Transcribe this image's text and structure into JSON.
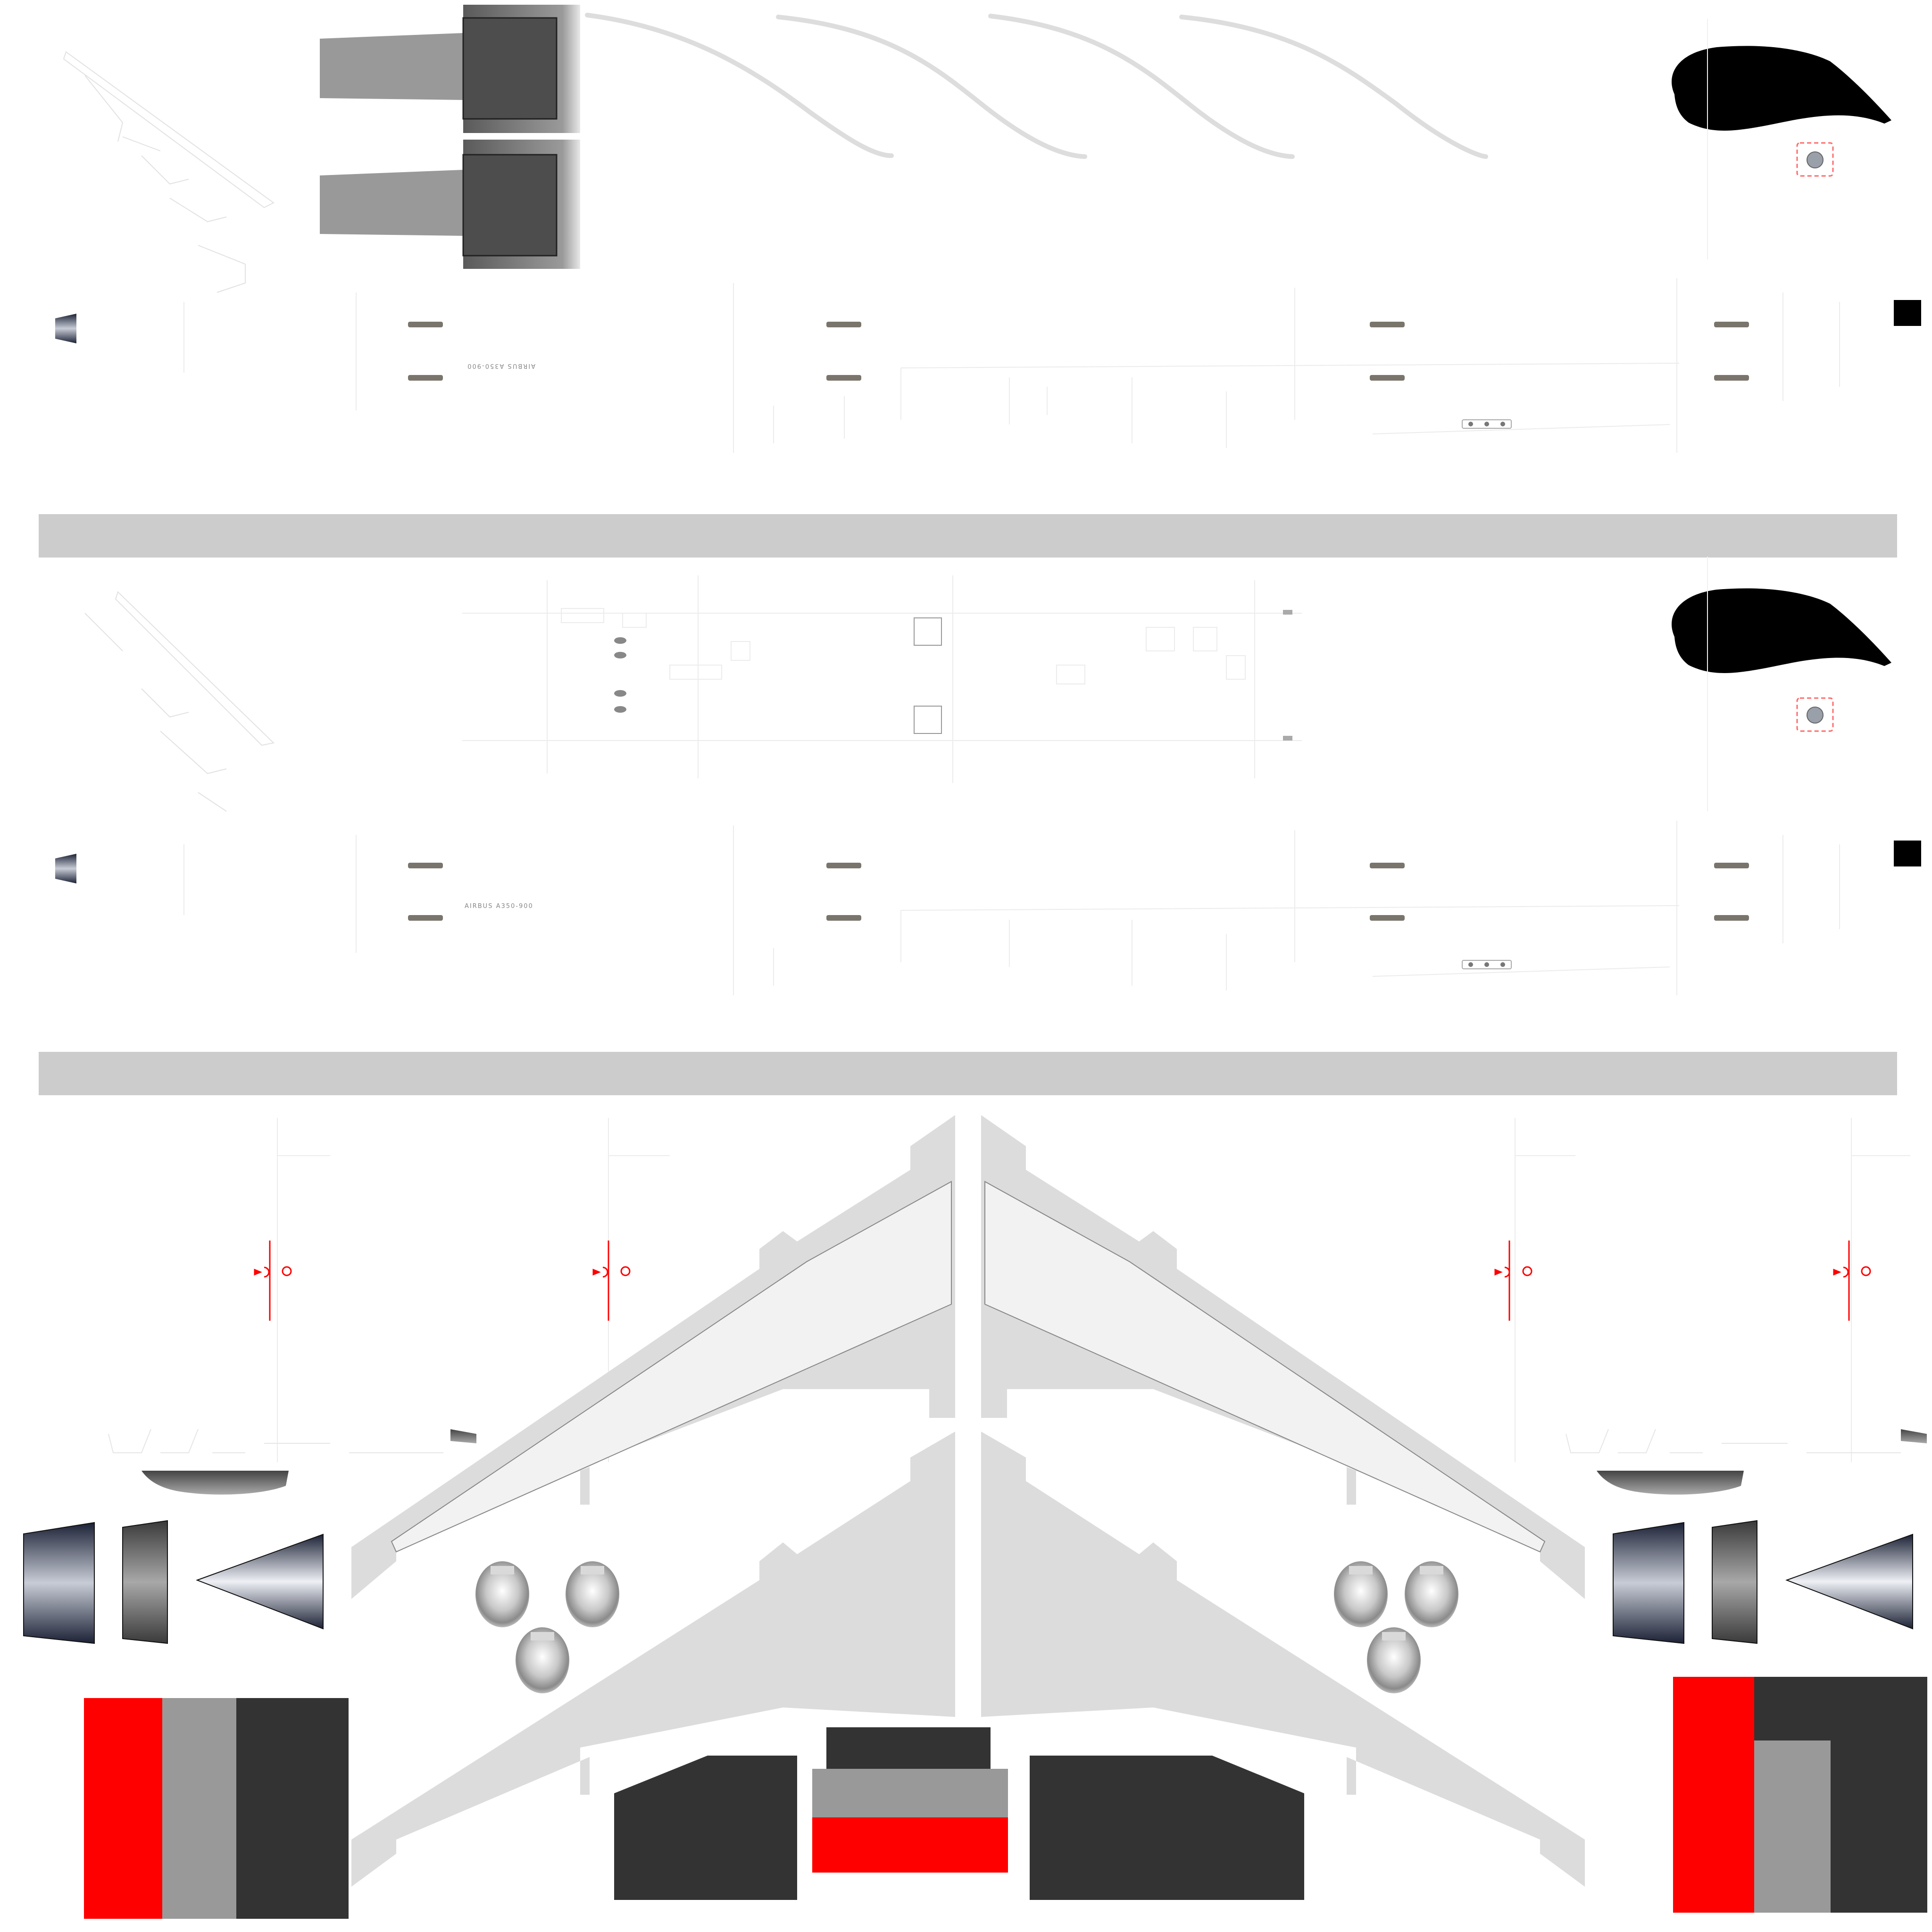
{
  "texture": {
    "registration_upper": "AIRBUS A350-900",
    "registration_lower": "AIRBUS A350-900"
  },
  "colors": {
    "background": "#ffffff",
    "separator": "#cccccc",
    "red": "#ff0000",
    "light_grey": "#999999",
    "dark_grey": "#333333",
    "engine_dark": "#4d4d4d",
    "wing_top": "#dcdcdc",
    "wing_panel": "#f2f2f2",
    "line": "#ececec",
    "navy": "#1c2236"
  }
}
